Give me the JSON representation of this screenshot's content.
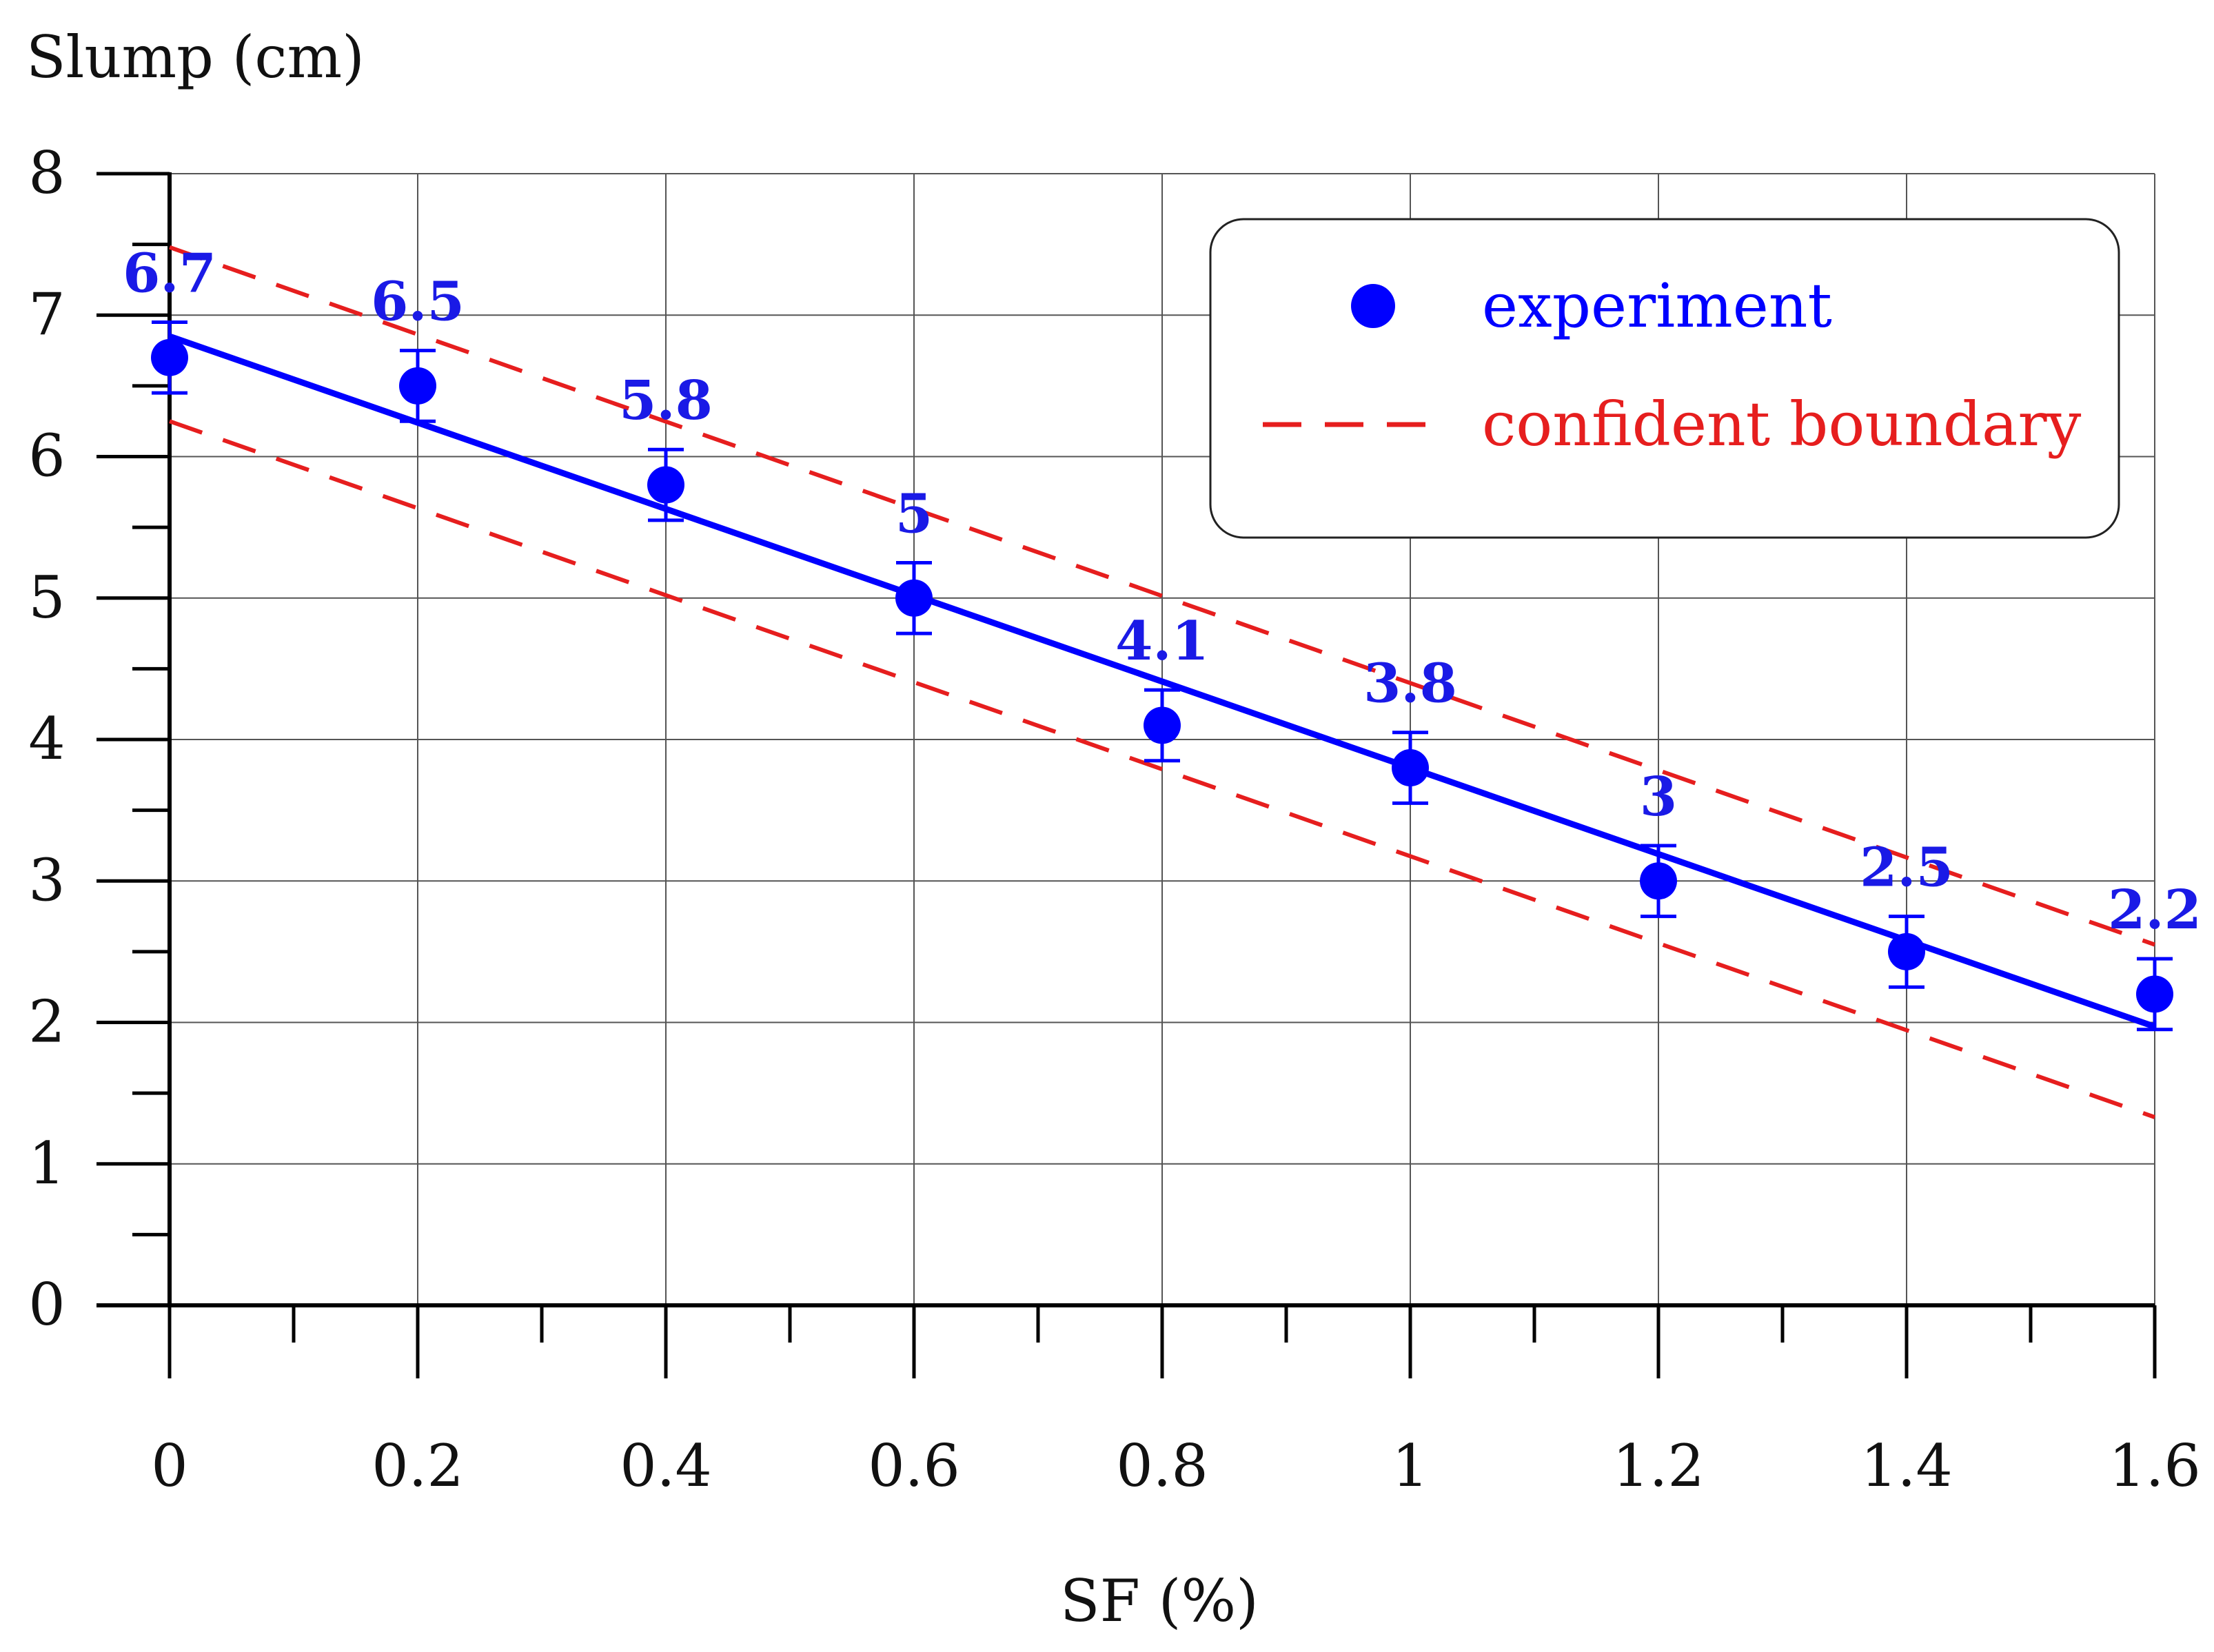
{
  "chart_data": {
    "type": "scatter",
    "title": "",
    "xlabel": "SF (%)",
    "ylabel": "Slump (cm)",
    "xlim": [
      0,
      1.6
    ],
    "ylim": [
      0,
      8
    ],
    "x_ticks": [
      0,
      0.2,
      0.4,
      0.6,
      0.8,
      1,
      1.2,
      1.4,
      1.6
    ],
    "x_tick_labels": [
      "0",
      "0.2",
      "0.4",
      "0.6",
      "0.8",
      "1",
      "1.2",
      "1.4",
      "1.6"
    ],
    "x_minor_ticks": [
      0.1,
      0.3,
      0.5,
      0.7,
      0.9,
      1.1,
      1.3,
      1.5
    ],
    "y_ticks": [
      0,
      1,
      2,
      3,
      4,
      5,
      6,
      7,
      8
    ],
    "y_tick_labels": [
      "0",
      "1",
      "2",
      "3",
      "4",
      "5",
      "6",
      "7",
      "8"
    ],
    "y_minor_ticks": [
      0.5,
      1.5,
      2.5,
      3.5,
      4.5,
      5.5,
      6.5,
      7.5
    ],
    "grid": true,
    "legend_position": "top-right",
    "series": [
      {
        "name": "experiment",
        "kind": "points_with_error_bars",
        "color": "#0000ff",
        "x": [
          0,
          0.2,
          0.4,
          0.6,
          0.8,
          1,
          1.2,
          1.4,
          1.6
        ],
        "y": [
          6.7,
          6.5,
          5.8,
          5,
          4.1,
          3.8,
          3,
          2.5,
          2.2
        ],
        "error": 0.25,
        "labels": [
          "6.7",
          "6.5",
          "5.8",
          "5",
          "4.1",
          "3.8",
          "3",
          "2.5",
          "2.2"
        ]
      },
      {
        "name": "fit",
        "kind": "line",
        "color": "#0000ff",
        "x": [
          0,
          1.6
        ],
        "y": [
          6.85,
          1.97
        ]
      },
      {
        "name": "confident boundary",
        "kind": "dashed_line",
        "color": "#e61e1e",
        "x": [
          0,
          1.6
        ],
        "y": [
          7.48,
          2.55
        ]
      },
      {
        "name": "confident boundary lower",
        "kind": "dashed_line",
        "color": "#e61e1e",
        "x": [
          0,
          1.6
        ],
        "y": [
          6.25,
          1.33
        ]
      }
    ],
    "legend": [
      {
        "label": "experiment",
        "marker": "circle",
        "color": "#0000ff"
      },
      {
        "label": "confident boundary",
        "marker": "dashed-line",
        "color": "#e61e1e"
      }
    ]
  }
}
